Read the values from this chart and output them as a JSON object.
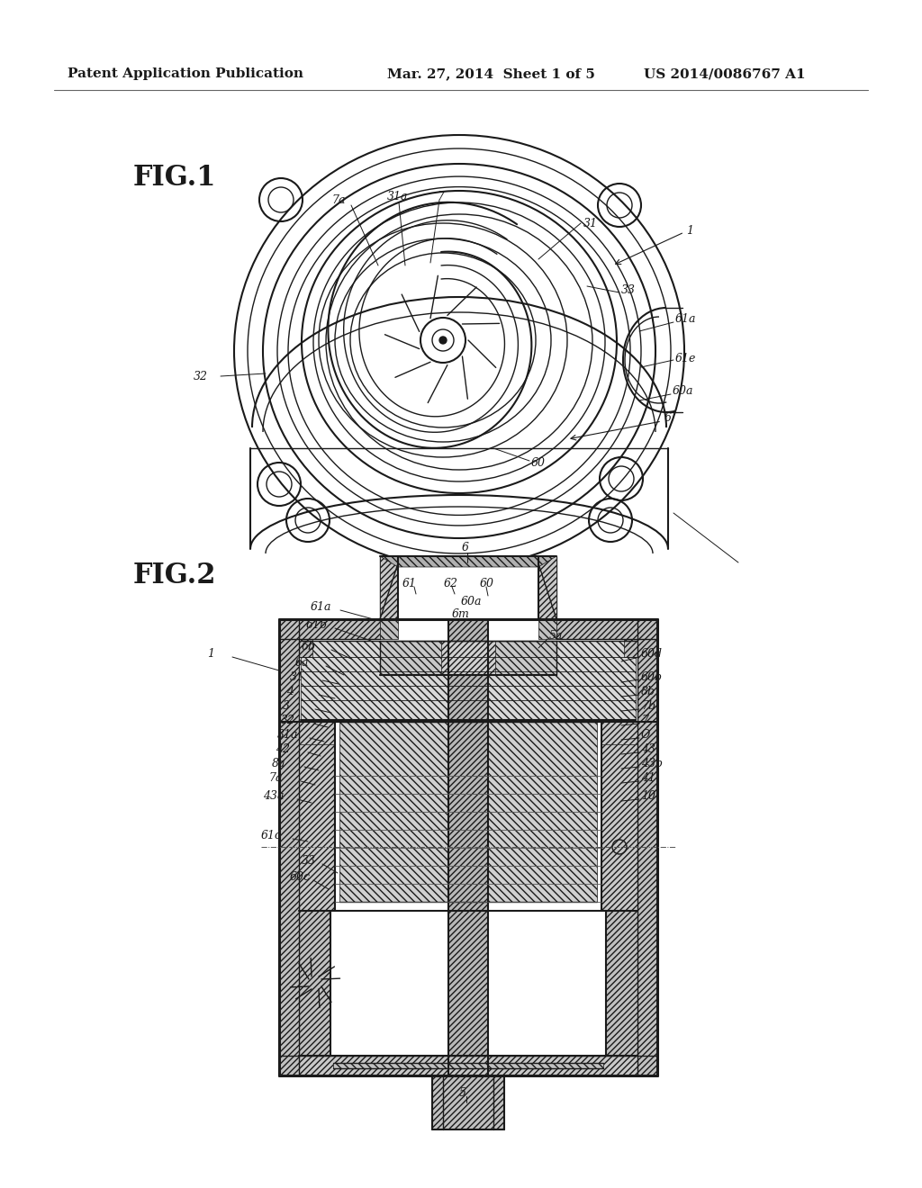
{
  "background_color": "#ffffff",
  "page_width": 10.24,
  "page_height": 13.2,
  "header_left": "Patent Application Publication",
  "header_center": "Mar. 27, 2014  Sheet 1 of 5",
  "header_right": "US 2014/0086767 A1",
  "line_color": "#1a1a1a",
  "fig1_label": "FIG.1",
  "fig2_label": "FIG.2",
  "label_fontsize": 9.0
}
